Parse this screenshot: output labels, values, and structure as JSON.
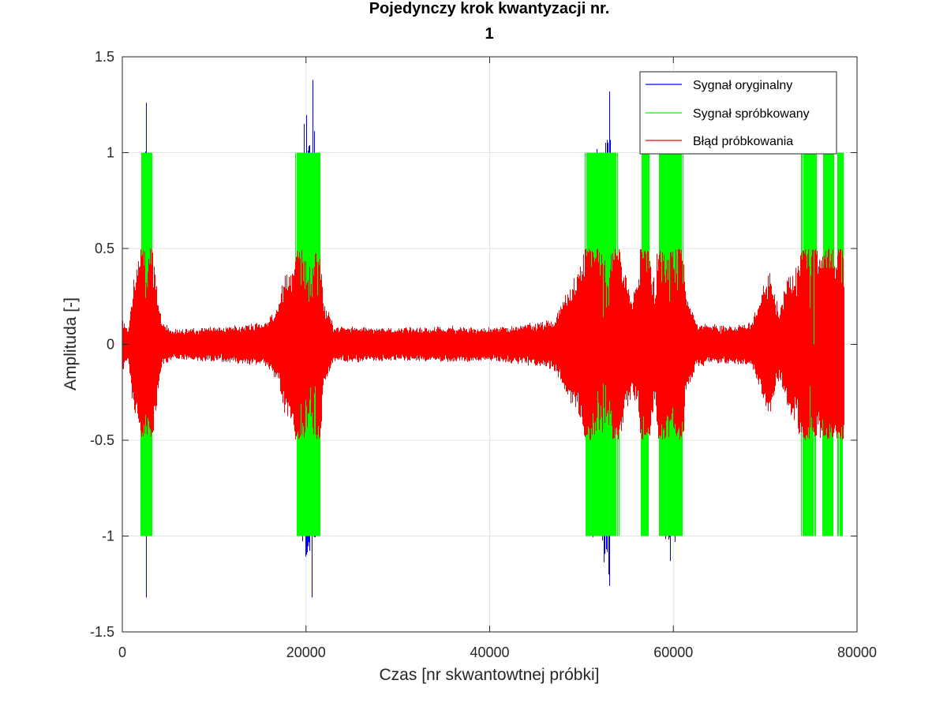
{
  "chart_data": {
    "type": "line",
    "title_line1": "Pojedynczy krok kwantyzacji nr.",
    "title_line2": "1",
    "xlabel": "Czas [nr skwantowtnej próbki]",
    "ylabel": "Amplituda [-]",
    "xlim": [
      0,
      80000
    ],
    "ylim": [
      -1.5,
      1.5
    ],
    "xticks": [
      0,
      20000,
      40000,
      60000,
      80000
    ],
    "xtick_labels": [
      "0",
      "20000",
      "40000",
      "60000",
      "80000"
    ],
    "yticks": [
      1.5,
      1,
      0.5,
      0,
      -0.5,
      -1,
      -1.5
    ],
    "ytick_labels": [
      "1.5",
      "1",
      "0.5",
      "0",
      "-0.5",
      "-1",
      "-1.5"
    ],
    "grid": true,
    "legend_position": "top-right",
    "n_samples": 78500,
    "quantization_step": 1,
    "series": [
      {
        "name": "Sygnał oryginalny",
        "color": "#0000ff",
        "peaks": [
          {
            "x": 2600,
            "y": 1.26
          },
          {
            "x": 2600,
            "y": -1.32
          },
          {
            "x": 20700,
            "y": 1.38
          },
          {
            "x": 20600,
            "y": -1.32
          },
          {
            "x": 19800,
            "y": 1.15
          },
          {
            "x": 20000,
            "y": -1.08
          },
          {
            "x": 53000,
            "y": 1.32
          },
          {
            "x": 53000,
            "y": -1.26
          },
          {
            "x": 59600,
            "y": -1.13
          }
        ]
      },
      {
        "name": "Sygnał spróbkowany",
        "color": "#00ff00",
        "levels": [
          -1,
          0,
          1
        ]
      },
      {
        "name": "Błąd próbkowania",
        "color": "#ff0000",
        "range": [
          -0.5,
          0.5
        ]
      }
    ],
    "envelope": [
      {
        "x": 0,
        "a": 0.15
      },
      {
        "x": 600,
        "a": 0.08
      },
      {
        "x": 1200,
        "a": 0.38
      },
      {
        "x": 1800,
        "a": 0.48
      },
      {
        "x": 2600,
        "a": 1.3
      },
      {
        "x": 3300,
        "a": 0.5
      },
      {
        "x": 4300,
        "a": 0.12
      },
      {
        "x": 5500,
        "a": 0.08
      },
      {
        "x": 8000,
        "a": 0.09
      },
      {
        "x": 12000,
        "a": 0.1
      },
      {
        "x": 15500,
        "a": 0.12
      },
      {
        "x": 16800,
        "a": 0.2
      },
      {
        "x": 17600,
        "a": 0.38
      },
      {
        "x": 18600,
        "a": 0.42
      },
      {
        "x": 19500,
        "a": 1.1
      },
      {
        "x": 20600,
        "a": 1.38
      },
      {
        "x": 21200,
        "a": 1.05
      },
      {
        "x": 21800,
        "a": 0.25
      },
      {
        "x": 23000,
        "a": 0.1
      },
      {
        "x": 30000,
        "a": 0.09
      },
      {
        "x": 36000,
        "a": 0.1
      },
      {
        "x": 40000,
        "a": 0.09
      },
      {
        "x": 44000,
        "a": 0.11
      },
      {
        "x": 47000,
        "a": 0.14
      },
      {
        "x": 48500,
        "a": 0.3
      },
      {
        "x": 50000,
        "a": 0.45
      },
      {
        "x": 51200,
        "a": 1.05
      },
      {
        "x": 52200,
        "a": 1.15
      },
      {
        "x": 53000,
        "a": 1.3
      },
      {
        "x": 53600,
        "a": 0.75
      },
      {
        "x": 54500,
        "a": 0.45
      },
      {
        "x": 55500,
        "a": 0.25
      },
      {
        "x": 56200,
        "a": 0.4
      },
      {
        "x": 57000,
        "a": 1.05
      },
      {
        "x": 57500,
        "a": 0.45
      },
      {
        "x": 58000,
        "a": 0.3
      },
      {
        "x": 58700,
        "a": 1.05
      },
      {
        "x": 59600,
        "a": 1.15
      },
      {
        "x": 60500,
        "a": 1.05
      },
      {
        "x": 61300,
        "a": 0.3
      },
      {
        "x": 62500,
        "a": 0.12
      },
      {
        "x": 66000,
        "a": 0.1
      },
      {
        "x": 68500,
        "a": 0.12
      },
      {
        "x": 69500,
        "a": 0.28
      },
      {
        "x": 70500,
        "a": 0.4
      },
      {
        "x": 71500,
        "a": 0.18
      },
      {
        "x": 72500,
        "a": 0.4
      },
      {
        "x": 73500,
        "a": 0.42
      },
      {
        "x": 74800,
        "a": 1.05
      },
      {
        "x": 75800,
        "a": 0.45
      },
      {
        "x": 77000,
        "a": 1.05
      },
      {
        "x": 77600,
        "a": 0.45
      },
      {
        "x": 78300,
        "a": 1.05
      },
      {
        "x": 78500,
        "a": 0.45
      }
    ]
  }
}
